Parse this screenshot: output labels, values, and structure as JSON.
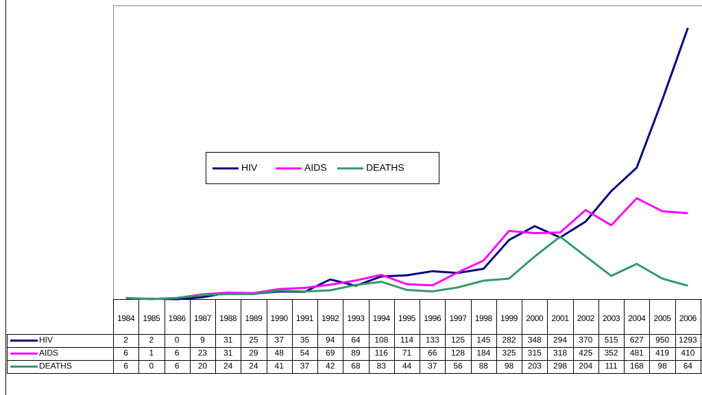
{
  "chart_data": {
    "type": "line",
    "categories": [
      "1984",
      "1985",
      "1986",
      "1987",
      "1988",
      "1989",
      "1990",
      "1991",
      "1992",
      "1993",
      "1994",
      "1995",
      "1996",
      "1997",
      "1998",
      "1999",
      "2000",
      "2001",
      "2002",
      "2003",
      "2004",
      "2005",
      "2006"
    ],
    "series": [
      {
        "name": "HIV",
        "color": "#000080",
        "values": [
          2,
          2,
          0,
          9,
          31,
          25,
          37,
          35,
          94,
          64,
          108,
          114,
          133,
          125,
          145,
          282,
          348,
          294,
          370,
          515,
          627,
          950,
          1293
        ]
      },
      {
        "name": "AIDS",
        "color": "#ff00ff",
        "values": [
          6,
          1,
          6,
          23,
          31,
          29,
          48,
          54,
          69,
          89,
          116,
          71,
          66,
          128,
          184,
          325,
          315,
          318,
          425,
          352,
          481,
          419,
          410
        ]
      },
      {
        "name": "DEATHS",
        "color": "#339966",
        "values": [
          6,
          0,
          6,
          20,
          24,
          24,
          41,
          37,
          42,
          68,
          83,
          44,
          37,
          56,
          88,
          98,
          203,
          298,
          204,
          111,
          168,
          98,
          64
        ]
      }
    ],
    "ylim": [
      0,
      1400
    ]
  }
}
